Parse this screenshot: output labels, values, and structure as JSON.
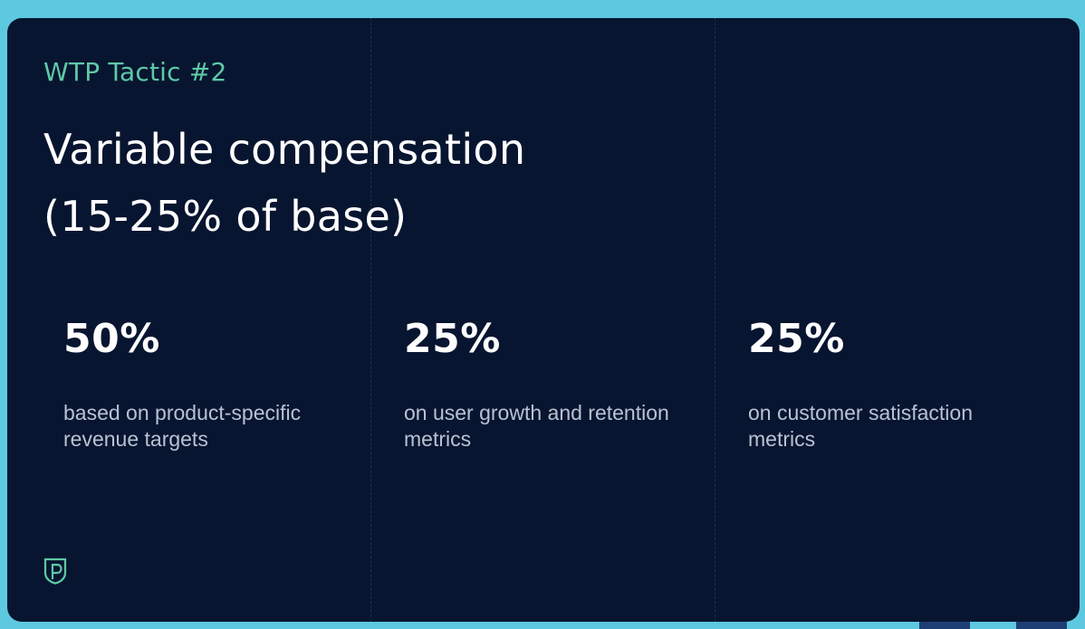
{
  "slide": {
    "eyebrow": "WTP Tactic #2",
    "title_line1": "Variable compensation",
    "title_line2": "(15-25% of base)",
    "stats": [
      {
        "value": "50%",
        "description": "based on product-specific revenue targets"
      },
      {
        "value": "25%",
        "description": "on user growth and retention metrics"
      },
      {
        "value": "25%",
        "description": "on customer satisfaction metrics"
      }
    ],
    "logo_icon": "shield-p-logo-icon"
  },
  "colors": {
    "frame": "#5ec8e0",
    "background": "#081530",
    "accent": "#5ec9a6",
    "text": "#ffffff",
    "muted": "#b8c2d2"
  }
}
